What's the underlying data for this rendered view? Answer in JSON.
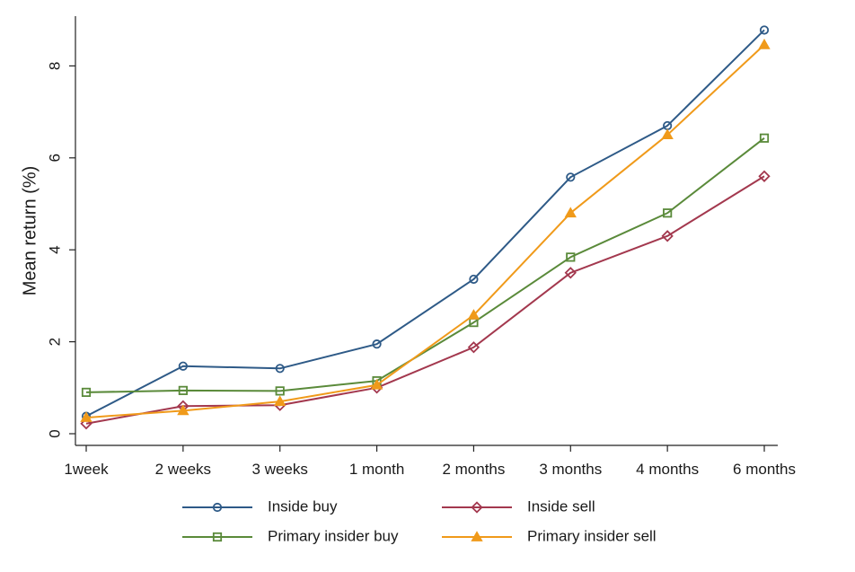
{
  "chart_data": {
    "type": "line",
    "title": "",
    "xlabel": "",
    "ylabel": "Mean return (%)",
    "categories": [
      "1week",
      "2 weeks",
      "3 weeks",
      "1 month",
      "2 months",
      "3 months",
      "4 months",
      "6 months"
    ],
    "ylim": [
      0,
      9
    ],
    "yticks": [
      0,
      2,
      4,
      6,
      8
    ],
    "grid": false,
    "legend_position": "bottom",
    "series": [
      {
        "name": "Inside buy",
        "color": "#2e5a87",
        "marker": "circle",
        "values": [
          0.38,
          1.47,
          1.42,
          1.95,
          3.36,
          5.58,
          6.7,
          8.78
        ]
      },
      {
        "name": "Inside sell",
        "color": "#a3384e",
        "marker": "diamond",
        "values": [
          0.22,
          0.6,
          0.62,
          1.0,
          1.88,
          3.5,
          4.3,
          5.6
        ]
      },
      {
        "name": "Primary insider buy",
        "color": "#5a8a3a",
        "marker": "square",
        "values": [
          0.9,
          0.94,
          0.93,
          1.15,
          2.42,
          3.84,
          4.8,
          6.43
        ]
      },
      {
        "name": "Primary insider sell",
        "color": "#f09a1a",
        "marker": "triangle",
        "values": [
          0.35,
          0.5,
          0.7,
          1.06,
          2.58,
          4.8,
          6.5,
          8.46
        ]
      }
    ]
  }
}
